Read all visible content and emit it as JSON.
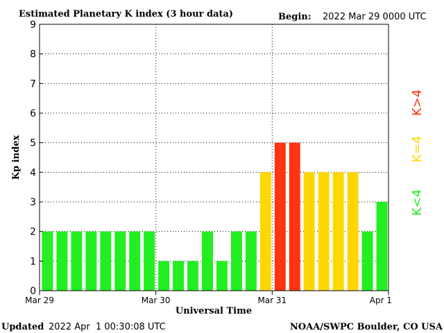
{
  "header": {
    "title": "Estimated Planetary K index (3 hour data)",
    "begin_label": "Begin:",
    "begin_value": "2022 Mar 29 0000 UTC"
  },
  "footer": {
    "updated_label": "Updated",
    "updated_value": "2022 Apr  1 00:30:08 UTC",
    "source": "NOAA/SWPC Boulder, CO USA"
  },
  "legend": {
    "low": "K<4",
    "equal": "K=4",
    "high": "K>4"
  },
  "colors": {
    "low": "#22ee22",
    "equal": "#ffd700",
    "high": "#ff3311",
    "background": "#ffffff",
    "axis": "#000000"
  },
  "chart_data": {
    "type": "bar",
    "title": "Estimated Planetary K index (3 hour data)",
    "xlabel": "Universal Time",
    "ylabel": "Kp index",
    "ylim": [
      0,
      9
    ],
    "yticks": [
      0,
      1,
      2,
      3,
      4,
      5,
      6,
      7,
      8,
      9
    ],
    "xtick_labels": [
      "Mar 29",
      "Mar 30",
      "Mar 31",
      "Apr 1"
    ],
    "grid": "dotted",
    "bars_per_day": 8,
    "values": [
      2,
      2,
      2,
      2,
      2,
      2,
      2,
      2,
      1,
      1,
      1,
      2,
      1,
      2,
      2,
      4,
      5,
      5,
      4,
      4,
      4,
      4,
      2,
      3
    ]
  }
}
